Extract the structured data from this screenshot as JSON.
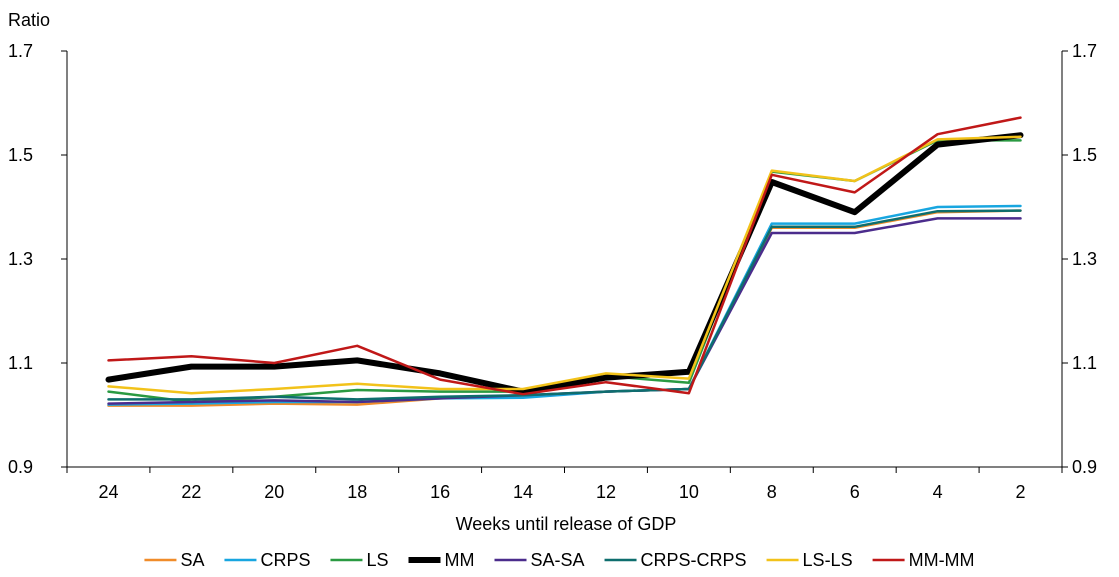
{
  "chart_data": {
    "type": "line",
    "title": "",
    "ylabel": "Ratio",
    "xlabel": "Weeks until release of GDP",
    "x": [
      24,
      22,
      20,
      18,
      16,
      14,
      12,
      10,
      8,
      6,
      4,
      2
    ],
    "ylim": [
      0.9,
      1.7
    ],
    "yticks": [
      "0.9",
      "1.1",
      "1.3",
      "1.5",
      "1.7"
    ],
    "ytick_values": [
      0.9,
      1.1,
      1.3,
      1.5,
      1.7
    ],
    "legend_position": "bottom",
    "grid": false,
    "series": [
      {
        "name": "SA",
        "color": "#f08c2a",
        "width": 2.5,
        "values": [
          1.018,
          1.018,
          1.022,
          1.02,
          1.032,
          1.035,
          1.045,
          1.05,
          1.36,
          1.36,
          1.39,
          1.393
        ]
      },
      {
        "name": "CRPS",
        "color": "#18a6e0",
        "width": 2.5,
        "values": [
          1.02,
          1.022,
          1.025,
          1.025,
          1.032,
          1.033,
          1.045,
          1.05,
          1.368,
          1.368,
          1.4,
          1.402
        ]
      },
      {
        "name": "LS",
        "color": "#2a9a42",
        "width": 2.5,
        "values": [
          1.045,
          1.025,
          1.035,
          1.048,
          1.045,
          1.045,
          1.075,
          1.062,
          1.468,
          1.45,
          1.528,
          1.528
        ]
      },
      {
        "name": "MM",
        "color": "#000000",
        "width": 6,
        "values": [
          1.068,
          1.093,
          1.093,
          1.105,
          1.08,
          1.045,
          1.072,
          1.083,
          1.448,
          1.39,
          1.52,
          1.538
        ]
      },
      {
        "name": "SA-SA",
        "color": "#4b2c8c",
        "width": 2.5,
        "values": [
          1.022,
          1.025,
          1.028,
          1.025,
          1.032,
          1.038,
          1.045,
          1.05,
          1.35,
          1.35,
          1.378,
          1.378
        ]
      },
      {
        "name": "CRPS-CRPS",
        "color": "#0e6e6e",
        "width": 2.5,
        "values": [
          1.03,
          1.03,
          1.035,
          1.03,
          1.035,
          1.038,
          1.045,
          1.05,
          1.362,
          1.362,
          1.392,
          1.393
        ]
      },
      {
        "name": "LS-LS",
        "color": "#f2c21a",
        "width": 2.5,
        "values": [
          1.055,
          1.042,
          1.05,
          1.06,
          1.05,
          1.05,
          1.08,
          1.07,
          1.47,
          1.45,
          1.53,
          1.535
        ]
      },
      {
        "name": "MM-MM",
        "color": "#c01818",
        "width": 2.5,
        "values": [
          1.105,
          1.113,
          1.1,
          1.133,
          1.068,
          1.04,
          1.063,
          1.042,
          1.462,
          1.428,
          1.54,
          1.572
        ]
      }
    ]
  }
}
